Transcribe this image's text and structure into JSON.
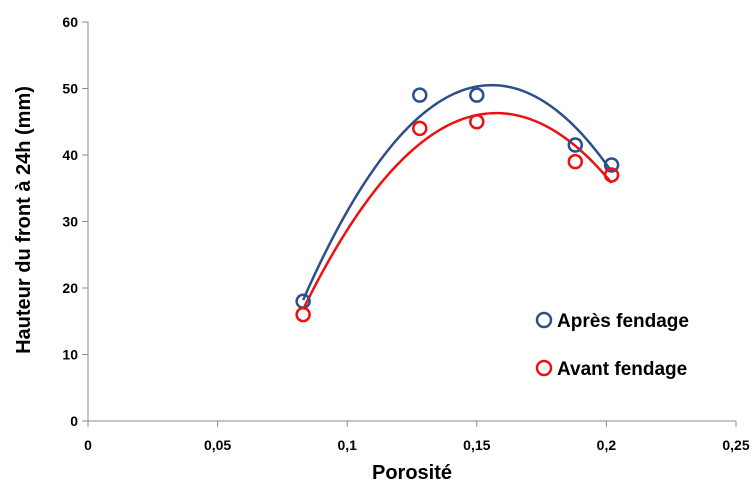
{
  "chart_data": {
    "type": "scatter",
    "xlabel": "Porosité",
    "ylabel": "Hauteur du front à 24h (mm)",
    "xlim": [
      0,
      0.25
    ],
    "ylim": [
      0,
      60
    ],
    "x_ticks": [
      "0",
      "0,05",
      "0,1",
      "0,15",
      "0,2",
      "0,25"
    ],
    "y_ticks": [
      "0",
      "10",
      "20",
      "30",
      "40",
      "50",
      "60"
    ],
    "grid": false,
    "legend_position": "bottom-right",
    "series": [
      {
        "name": "Après fendage",
        "color": "#2e4f8a",
        "marker": "open-circle",
        "points": [
          {
            "x": 0.083,
            "y": 18
          },
          {
            "x": 0.128,
            "y": 49
          },
          {
            "x": 0.15,
            "y": 49
          },
          {
            "x": 0.188,
            "y": 41.5
          },
          {
            "x": 0.202,
            "y": 38.5
          }
        ],
        "trendline": {
          "type": "polynomial-2",
          "x_range": [
            0.083,
            0.202
          ],
          "curve": [
            {
              "x": 0.083,
              "y": 18.2
            },
            {
              "x": 0.155,
              "y": 50.5
            },
            {
              "x": 0.202,
              "y": 37.5
            }
          ]
        }
      },
      {
        "name": "Avant fendage",
        "color": "#ee1111",
        "marker": "open-circle",
        "points": [
          {
            "x": 0.083,
            "y": 16
          },
          {
            "x": 0.128,
            "y": 44
          },
          {
            "x": 0.15,
            "y": 45
          },
          {
            "x": 0.188,
            "y": 39
          },
          {
            "x": 0.202,
            "y": 37
          }
        ],
        "trendline": {
          "type": "polynomial-2",
          "x_range": [
            0.083,
            0.202
          ],
          "curve": [
            {
              "x": 0.083,
              "y": 16.8
            },
            {
              "x": 0.157,
              "y": 46.3
            },
            {
              "x": 0.202,
              "y": 35.8
            }
          ]
        }
      }
    ]
  }
}
